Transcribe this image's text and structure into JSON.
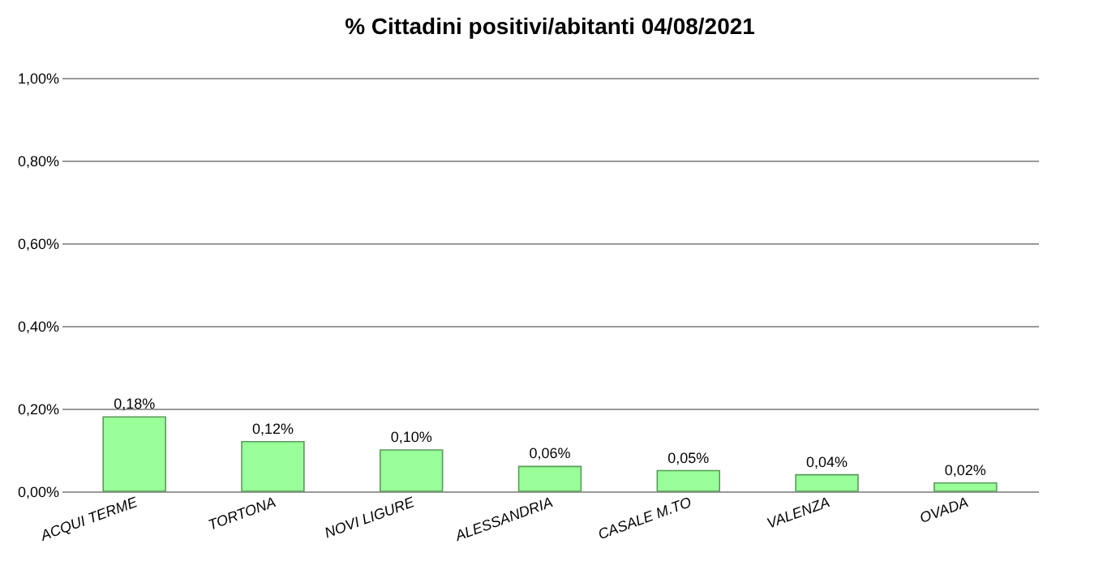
{
  "chart_data": {
    "type": "bar",
    "title": "% Cittadini positivi/abitanti 04/08/2021",
    "categories": [
      "ACQUI TERME",
      "TORTONA",
      "NOVI LIGURE",
      "ALESSANDRIA",
      "CASALE M.TO",
      "VALENZA",
      "OVADA"
    ],
    "values": [
      0.18,
      0.12,
      0.1,
      0.06,
      0.05,
      0.04,
      0.02
    ],
    "value_labels": [
      "0,18%",
      "0,12%",
      "0,10%",
      "0,06%",
      "0,05%",
      "0,04%",
      "0,02%"
    ],
    "color": "#99ff99",
    "ylim": [
      0,
      1
    ],
    "yticks": [
      {
        "value": 0,
        "label": "0,00%"
      },
      {
        "value": 0.2,
        "label": "0,20%"
      },
      {
        "value": 0.4,
        "label": "0,40%"
      },
      {
        "value": 0.6,
        "label": "0,60%"
      },
      {
        "value": 0.8,
        "label": "0,80%"
      },
      {
        "value": 1,
        "label": "1,00%"
      }
    ],
    "grid": "y"
  }
}
